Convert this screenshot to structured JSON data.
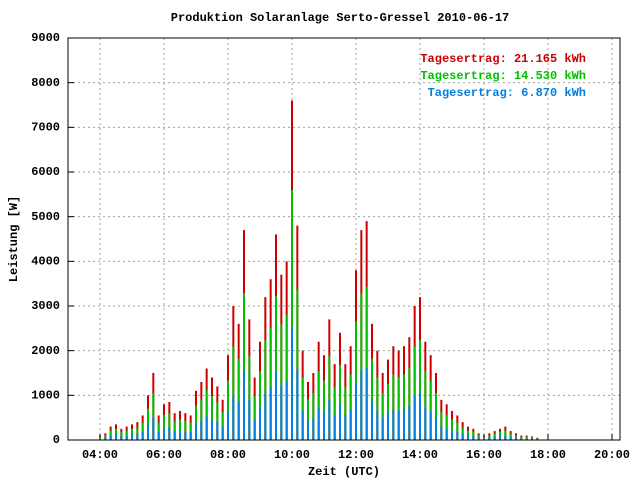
{
  "chart_data": {
    "type": "impulse",
    "title": "Produktion Solaranlage Serto-Gressel 2010-06-17",
    "xlabel": "Zeit (UTC)",
    "ylabel": "Leistung [W]",
    "xlim": [
      "03:00",
      "20:15"
    ],
    "xticks": [
      "04:00",
      "06:00",
      "08:00",
      "10:00",
      "12:00",
      "14:00",
      "16:00",
      "18:00",
      "20:00"
    ],
    "ylim": [
      0,
      9000
    ],
    "yticks": [
      0,
      1000,
      2000,
      3000,
      4000,
      5000,
      6000,
      7000,
      8000,
      9000
    ],
    "grid": true,
    "legend": "top-right",
    "x": [
      "04:00",
      "04:10",
      "04:20",
      "04:30",
      "04:40",
      "04:50",
      "05:00",
      "05:10",
      "05:20",
      "05:30",
      "05:40",
      "05:50",
      "06:00",
      "06:10",
      "06:20",
      "06:30",
      "06:40",
      "06:50",
      "07:00",
      "07:10",
      "07:20",
      "07:30",
      "07:40",
      "07:50",
      "08:00",
      "08:10",
      "08:20",
      "08:30",
      "08:40",
      "08:50",
      "09:00",
      "09:10",
      "09:20",
      "09:30",
      "09:40",
      "09:50",
      "10:00",
      "10:10",
      "10:20",
      "10:30",
      "10:40",
      "10:50",
      "11:00",
      "11:10",
      "11:20",
      "11:30",
      "11:40",
      "11:50",
      "12:00",
      "12:10",
      "12:20",
      "12:30",
      "12:40",
      "12:50",
      "13:00",
      "13:10",
      "13:20",
      "13:30",
      "13:40",
      "13:50",
      "14:00",
      "14:10",
      "14:20",
      "14:30",
      "14:40",
      "14:50",
      "15:00",
      "15:10",
      "15:20",
      "15:30",
      "15:40",
      "15:50",
      "16:00",
      "16:10",
      "16:20",
      "16:30",
      "16:40",
      "16:50",
      "17:00",
      "17:10",
      "17:20",
      "17:30",
      "17:40"
    ],
    "series": [
      {
        "name": "Tagesertrag: 21.165 kWh",
        "color": "#cc0000",
        "values": [
          100,
          150,
          300,
          350,
          250,
          300,
          350,
          400,
          550,
          1000,
          1500,
          550,
          800,
          850,
          600,
          650,
          600,
          550,
          1100,
          1300,
          1600,
          1400,
          1200,
          900,
          1900,
          3000,
          2600,
          4700,
          2700,
          1400,
          2200,
          3200,
          3600,
          4600,
          3700,
          4000,
          7600,
          4800,
          2000,
          1300,
          1500,
          2200,
          1900,
          2700,
          1700,
          2400,
          1700,
          2100,
          3800,
          4700,
          4900,
          2600,
          2000,
          1500,
          1800,
          2100,
          2000,
          2100,
          2300,
          3000,
          3200,
          2200,
          1900,
          1500,
          900,
          800,
          650,
          550,
          400,
          300,
          250,
          150,
          100,
          150,
          200,
          250,
          300,
          200,
          150,
          100,
          100,
          80,
          50
        ]
      },
      {
        "name": "Tagesertrag: 14.530 kWh",
        "color": "#00c000",
        "values": [
          70,
          100,
          210,
          250,
          180,
          210,
          250,
          280,
          390,
          700,
          1050,
          390,
          560,
          600,
          420,
          460,
          420,
          390,
          770,
          910,
          1120,
          980,
          840,
          630,
          1330,
          2100,
          1820,
          3290,
          1890,
          980,
          1540,
          2240,
          2520,
          3220,
          2590,
          2800,
          5600,
          3360,
          1400,
          910,
          1050,
          1540,
          1330,
          1890,
          1190,
          1680,
          1190,
          1470,
          2660,
          3290,
          3430,
          1820,
          1400,
          1050,
          1260,
          1470,
          1400,
          1470,
          1610,
          2100,
          2240,
          1540,
          1330,
          1050,
          630,
          560,
          460,
          390,
          280,
          210,
          180,
          100,
          70,
          100,
          140,
          180,
          210,
          140,
          100,
          70,
          70,
          60,
          30
        ]
      },
      {
        "name": "Tagesertrag: 6.870 kWh",
        "color": "#0080e0",
        "values": [
          30,
          50,
          100,
          120,
          80,
          100,
          120,
          130,
          180,
          330,
          500,
          180,
          260,
          280,
          200,
          210,
          200,
          180,
          360,
          430,
          530,
          460,
          400,
          300,
          630,
          990,
          860,
          1550,
          890,
          460,
          730,
          1060,
          1190,
          1520,
          1220,
          1320,
          2500,
          1580,
          660,
          430,
          500,
          730,
          630,
          890,
          560,
          790,
          560,
          690,
          1250,
          1550,
          1620,
          860,
          660,
          500,
          590,
          690,
          660,
          690,
          760,
          990,
          1060,
          730,
          630,
          500,
          300,
          260,
          210,
          180,
          130,
          100,
          80,
          50,
          30,
          50,
          70,
          80,
          100,
          70,
          50,
          30,
          30,
          30,
          20
        ]
      }
    ]
  }
}
